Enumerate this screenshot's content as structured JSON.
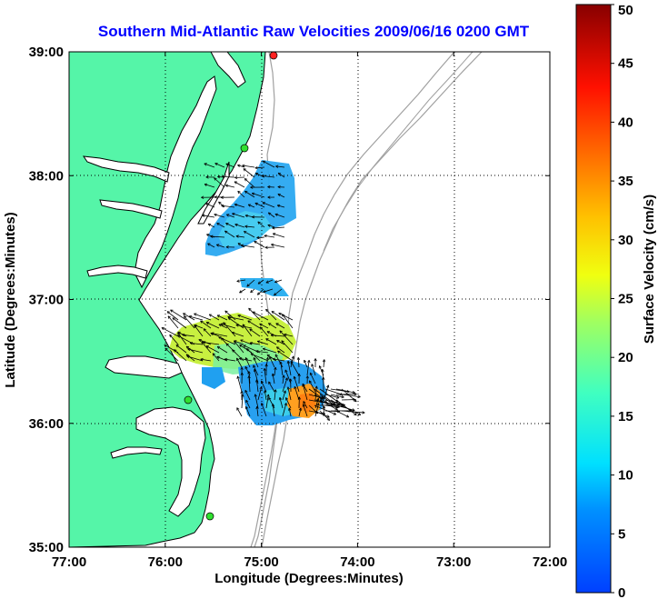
{
  "title": "Southern Mid-Atlantic Raw Velocities 2009/06/16 0200 GMT",
  "xlabel": "Longitude (Degrees:Minutes)",
  "ylabel": "Latitude (Degrees:Minutes)",
  "colorbar_label": "Surface Velocity (cm/s)",
  "colors": {
    "title": "#0000ff",
    "land": "#55f5a8",
    "coast": "#000000",
    "isobath": "#a0a0a0",
    "grid": "#000000"
  },
  "chart_data": {
    "type": "map",
    "x_ticks": [
      {
        "value": -77,
        "label": "77:00"
      },
      {
        "value": -76,
        "label": "76:00"
      },
      {
        "value": -75,
        "label": "75:00"
      },
      {
        "value": -74,
        "label": "74:00"
      },
      {
        "value": -73,
        "label": "73:00"
      },
      {
        "value": -72,
        "label": "72:00"
      }
    ],
    "y_ticks": [
      {
        "value": 35,
        "label": "35:00"
      },
      {
        "value": 36,
        "label": "36:00"
      },
      {
        "value": 37,
        "label": "37:00"
      },
      {
        "value": 38,
        "label": "38:00"
      },
      {
        "value": 39,
        "label": "39:00"
      }
    ],
    "xlim": [
      -77,
      -72
    ],
    "ylim": [
      35,
      39
    ],
    "grid": "dotted",
    "colorbar": {
      "range": [
        0,
        50
      ],
      "ticks": [
        {
          "value": 0,
          "label": "0"
        },
        {
          "value": 5,
          "label": "5"
        },
        {
          "value": 10,
          "label": "10"
        },
        {
          "value": 15,
          "label": "15"
        },
        {
          "value": 20,
          "label": "20"
        },
        {
          "value": 25,
          "label": "25"
        },
        {
          "value": 30,
          "label": "30"
        },
        {
          "value": 35,
          "label": "35"
        },
        {
          "value": 40,
          "label": "40"
        },
        {
          "value": 45,
          "label": "45"
        },
        {
          "value": 50,
          "label": "50"
        }
      ],
      "colormap": "jet"
    },
    "stations": [
      {
        "lon": -74.87,
        "lat": 38.97,
        "status": "red"
      },
      {
        "lon": -75.18,
        "lat": 38.21,
        "status": "green"
      },
      {
        "lon": -75.72,
        "lat": 36.19,
        "status": "green"
      },
      {
        "lon": -75.53,
        "lat": 35.27,
        "status": "green"
      }
    ],
    "velocity_regions": [
      {
        "name": "delmarva-offshore",
        "lon": [
          -75.55,
          -74.65
        ],
        "lat": [
          37.35,
          38.12
        ],
        "speed": [
          6,
          12
        ]
      },
      {
        "name": "delmarva-patch",
        "lon": [
          -75.2,
          -74.7
        ],
        "lat": [
          36.97,
          37.2
        ],
        "speed": [
          6,
          9
        ]
      },
      {
        "name": "hatteras-north",
        "lon": [
          -75.8,
          -74.5
        ],
        "lat": [
          36.33,
          36.92
        ],
        "speed": [
          18,
          25
        ]
      },
      {
        "name": "hatteras-core",
        "lon": [
          -75.2,
          -74.35
        ],
        "lat": [
          35.96,
          36.42
        ],
        "speed": [
          6,
          12
        ]
      },
      {
        "name": "hatteras-jet",
        "lon": [
          -74.55,
          -74.35
        ],
        "lat": [
          36.05,
          36.25
        ],
        "speed": [
          26,
          33
        ]
      }
    ]
  }
}
